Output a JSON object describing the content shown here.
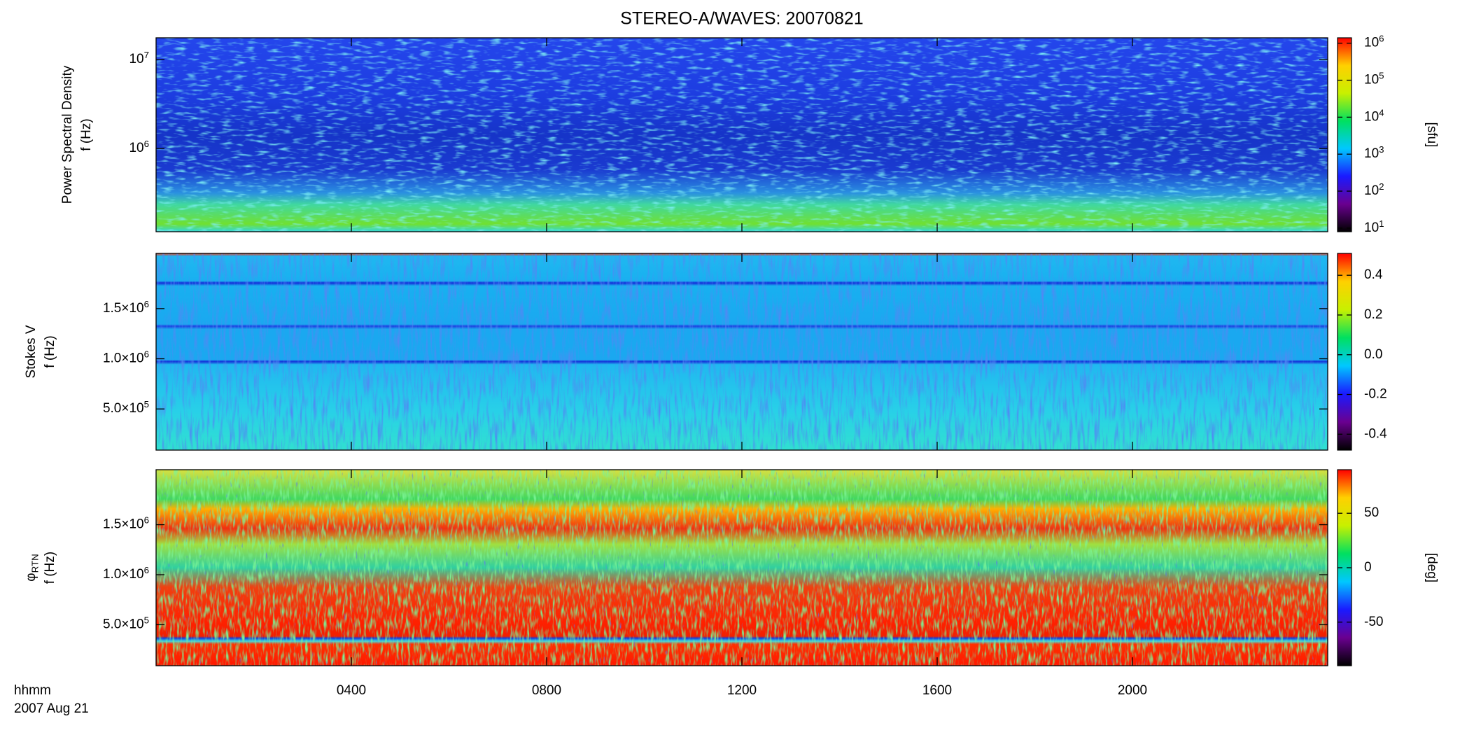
{
  "chart_data": {
    "type": "spectrogram",
    "title": "STEREO-A/WAVES: 20070821",
    "xlabel": "hhmm",
    "date_label": "2007 Aug 21",
    "xlim": [
      0,
      24
    ],
    "xticks": [
      {
        "value": 4,
        "label": "0400"
      },
      {
        "value": 8,
        "label": "0800"
      },
      {
        "value": 12,
        "label": "1200"
      },
      {
        "value": 16,
        "label": "1600"
      },
      {
        "value": 20,
        "label": "2000"
      }
    ],
    "colormap": [
      "#000000",
      "#6a0090",
      "#1a1aff",
      "#00c8ff",
      "#00e060",
      "#c8f000",
      "#ffd000",
      "#ff0000"
    ],
    "panels": [
      {
        "ylabel": [
          "Power Spectral Density",
          "f (Hz)"
        ],
        "ylog": true,
        "ylim": [
          116000,
          17600000
        ],
        "yticks": [
          {
            "value": 1000000,
            "label": "10^6"
          },
          {
            "value": 10000000,
            "label": "10^7"
          }
        ],
        "colorbar": {
          "label": "[sfu]",
          "log": true,
          "clim": [
            8,
            1400000
          ],
          "ticks": [
            {
              "value": 10,
              "label": "10^1"
            },
            {
              "value": 100,
              "label": "10^2"
            },
            {
              "value": 1000,
              "label": "10^3"
            },
            {
              "value": 10000,
              "label": "10^4"
            },
            {
              "value": 100000,
              "label": "10^5"
            },
            {
              "value": 1000000,
              "label": "10^6"
            }
          ]
        }
      },
      {
        "ylabel": [
          "Stokes V",
          "f (Hz)"
        ],
        "ylog": false,
        "ylim": [
          90000,
          2050000
        ],
        "yticks": [
          {
            "value": 500000,
            "label": "5.0×10^5"
          },
          {
            "value": 1000000,
            "label": "1.0×10^6"
          },
          {
            "value": 1500000,
            "label": "1.5×10^6"
          }
        ],
        "colorbar": {
          "log": false,
          "clim": [
            -0.48,
            0.51
          ],
          "ticks": [
            {
              "value": -0.4,
              "label": "-0.4"
            },
            {
              "value": -0.2,
              "label": "-0.2"
            },
            {
              "value": 0,
              "label": "0.0"
            },
            {
              "value": 0.2,
              "label": "0.2"
            },
            {
              "value": 0.4,
              "label": "0.4"
            }
          ]
        }
      },
      {
        "ylabel": [
          "φ_RTN",
          "f (Hz)"
        ],
        "ylog": false,
        "ylim": [
          90000,
          2050000
        ],
        "yticks": [
          {
            "value": 500000,
            "label": "5.0×10^5"
          },
          {
            "value": 1000000,
            "label": "1.0×10^6"
          },
          {
            "value": 1500000,
            "label": "1.5×10^6"
          }
        ],
        "colorbar": {
          "label": "[deg]",
          "log": false,
          "clim": [
            -90,
            90
          ],
          "ticks": [
            -50,
            0,
            50
          ]
        }
      }
    ]
  }
}
